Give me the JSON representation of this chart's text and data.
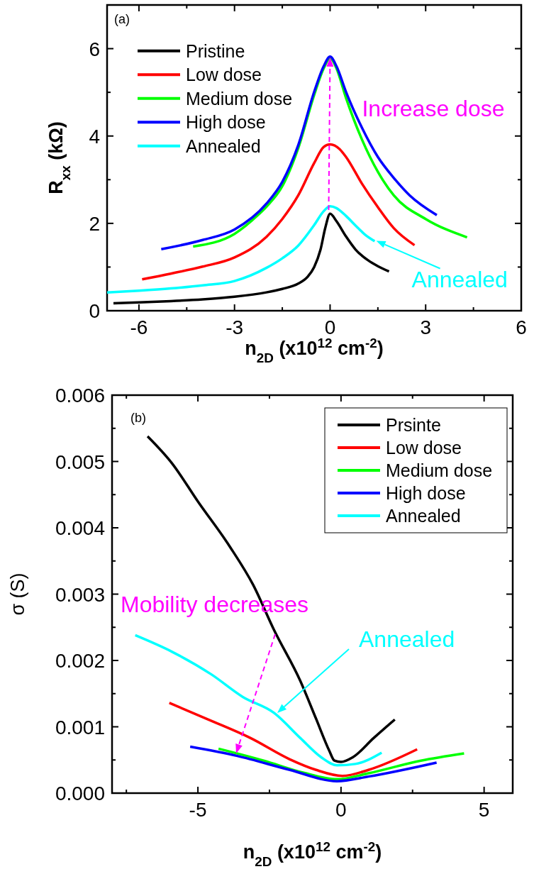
{
  "chart_data": [
    {
      "type": "line",
      "xlabel": "n$_{2D}$ (x10$^{12}$ cm$^{-2}$)",
      "ylabel": "R$_{xx}$ (kΩ)",
      "xlim": [
        -7,
        6
      ],
      "xticks": [
        -6,
        {
          "value": -4.5,
          "label": null
        },
        -3,
        {
          "value": -1.5,
          "label": null
        },
        0,
        {
          "value": 1.5,
          "label": null
        },
        3,
        {
          "value": 4.5,
          "label": null
        },
        6
      ],
      "ylim": [
        0,
        7
      ],
      "yticks": [
        0,
        {
          "value": 1,
          "label": null
        },
        2,
        {
          "value": 3,
          "label": null
        },
        4,
        {
          "value": 5,
          "label": null
        },
        6
      ],
      "legend": "top left",
      "annotations": [
        "(a)",
        {
          "text": "Increase dose",
          "x": 0,
          "y": 5.8
        },
        {
          "text": "Annealed",
          "x": 1.45,
          "y": 1.6
        }
      ],
      "series": [
        {
          "name": "Pristine",
          "color": "#000000",
          "x": [
            -6.8,
            -6,
            -5,
            -4,
            -3,
            -2,
            -1.5,
            -1,
            -0.7,
            -0.5,
            -0.3,
            -0.15,
            0,
            0.2,
            0.5,
            0.8,
            1.2,
            1.5,
            1.85
          ],
          "values": [
            0.17,
            0.19,
            0.22,
            0.26,
            0.32,
            0.42,
            0.5,
            0.62,
            0.78,
            1.0,
            1.4,
            1.9,
            2.22,
            2.05,
            1.7,
            1.4,
            1.15,
            1.02,
            0.9
          ]
        },
        {
          "name": "Low dose",
          "color": "#ff0000",
          "x": [
            -5.9,
            -5,
            -4,
            -3,
            -2,
            -1.5,
            -1,
            -0.5,
            -0.2,
            0,
            0.3,
            0.5,
            1,
            1.5,
            2,
            2.65
          ],
          "values": [
            0.72,
            0.85,
            1.01,
            1.22,
            1.69,
            2.1,
            2.64,
            3.38,
            3.75,
            3.81,
            3.7,
            3.52,
            2.91,
            2.37,
            1.89,
            1.5
          ]
        },
        {
          "name": "Medium dose",
          "color": "#00ff00",
          "x": [
            -4.3,
            -3,
            -2.25,
            -2,
            -1.5,
            -1,
            -0.5,
            -0.2,
            0,
            0.2,
            0.5,
            1,
            1.5,
            2,
            3,
            4.3
          ],
          "values": [
            1.47,
            1.76,
            2.2,
            2.38,
            2.85,
            3.72,
            4.94,
            5.55,
            5.78,
            5.55,
            4.87,
            3.92,
            3.18,
            2.64,
            2.1,
            1.68
          ]
        },
        {
          "name": "High dose",
          "color": "#0000ff",
          "x": [
            -5.3,
            -4,
            -3,
            -2,
            -1.5,
            -1,
            -0.5,
            -0.2,
            0,
            0.2,
            0.5,
            1,
            1.5,
            2,
            2.5,
            3.35
          ],
          "values": [
            1.41,
            1.62,
            1.86,
            2.45,
            2.95,
            3.79,
            5.01,
            5.6,
            5.82,
            5.6,
            5.01,
            4.19,
            3.52,
            3.04,
            2.64,
            2.19
          ]
        },
        {
          "name": "Annealed",
          "color": "#00ffff",
          "x": [
            -7,
            -6,
            -5,
            -4,
            -3,
            -2,
            -1.5,
            -1,
            -0.5,
            -0.2,
            0,
            0.2,
            0.5,
            0.8,
            1.1,
            1.4
          ],
          "values": [
            0.42,
            0.46,
            0.51,
            0.58,
            0.68,
            0.98,
            1.2,
            1.49,
            1.96,
            2.28,
            2.39,
            2.35,
            2.17,
            1.95,
            1.74,
            1.59
          ]
        }
      ]
    },
    {
      "type": "line",
      "xlabel": "n$_{2D}$ (x10$^{12}$ cm$^{-2}$)",
      "ylabel": "σ (S)",
      "xlim": [
        -8,
        6
      ],
      "xticks": [
        {
          "value": -7.5,
          "label": null
        },
        -5,
        {
          "value": -2.5,
          "label": null
        },
        0,
        {
          "value": 2.5,
          "label": null
        },
        5
      ],
      "ylim": [
        0,
        0.006
      ],
      "yticks": [
        {
          "value": 0,
          "label": "0.000"
        },
        {
          "value": 0.0005,
          "label": null
        },
        0.001,
        {
          "value": 0.0015,
          "label": null
        },
        0.002,
        {
          "value": 0.0025,
          "label": null
        },
        0.003,
        {
          "value": 0.0035,
          "label": null
        },
        0.004,
        {
          "value": 0.0045,
          "label": null
        },
        0.005,
        {
          "value": 0.0055,
          "label": null
        },
        0.006
      ],
      "legend": "top right",
      "annotations": [
        "(b)",
        "Mobility decreases",
        "Annealed"
      ],
      "series": [
        {
          "name": "Prsinte",
          "color": "#000000",
          "x": [
            -6.76,
            -5.9,
            -4.99,
            -3.89,
            -3.07,
            -2.34,
            -1.42,
            -0.87,
            -0.41,
            -0.23,
            0,
            0.41,
            1.14,
            1.88
          ],
          "values": [
            0.00538,
            0.00497,
            0.00439,
            0.00372,
            0.00314,
            0.00246,
            0.00169,
            0.00112,
            0.00064,
            0.00049,
            0.00047,
            0.00054,
            0.00083,
            0.00111
          ]
        },
        {
          "name": "Low dose",
          "color": "#ff0000",
          "x": [
            -6,
            -4.53,
            -3.16,
            -1.79,
            -0.87,
            0.05,
            0.96,
            2.66
          ],
          "values": [
            0.00136,
            0.00109,
            0.00083,
            0.00051,
            0.00035,
            0.00026,
            0.00035,
            0.00066
          ]
        },
        {
          "name": "Medium dose",
          "color": "#00ff00",
          "x": [
            -4.28,
            -2.7,
            -1.33,
            -0.14,
            0.96,
            2.79,
            4.3
          ],
          "values": [
            0.00067,
            0.00049,
            0.00031,
            0.00021,
            0.0003,
            0.00049,
            0.0006
          ]
        },
        {
          "name": "High dose",
          "color": "#0000ff",
          "x": [
            -5.27,
            -3.62,
            -1.79,
            -0.14,
            0.96,
            3.34
          ],
          "values": [
            0.0007,
            0.00056,
            0.00035,
            0.00018,
            0.00025,
            0.00046
          ]
        },
        {
          "name": "Annealed",
          "color": "#00ffff",
          "x": [
            -7.19,
            -5.9,
            -4.53,
            -3.43,
            -2.34,
            -1.42,
            -0.69,
            -0.14,
            0.5,
            1.42
          ],
          "values": [
            0.00238,
            0.00213,
            0.00179,
            0.00145,
            0.00121,
            0.00083,
            0.00054,
            0.00042,
            0.00044,
            0.00061
          ]
        }
      ]
    }
  ]
}
